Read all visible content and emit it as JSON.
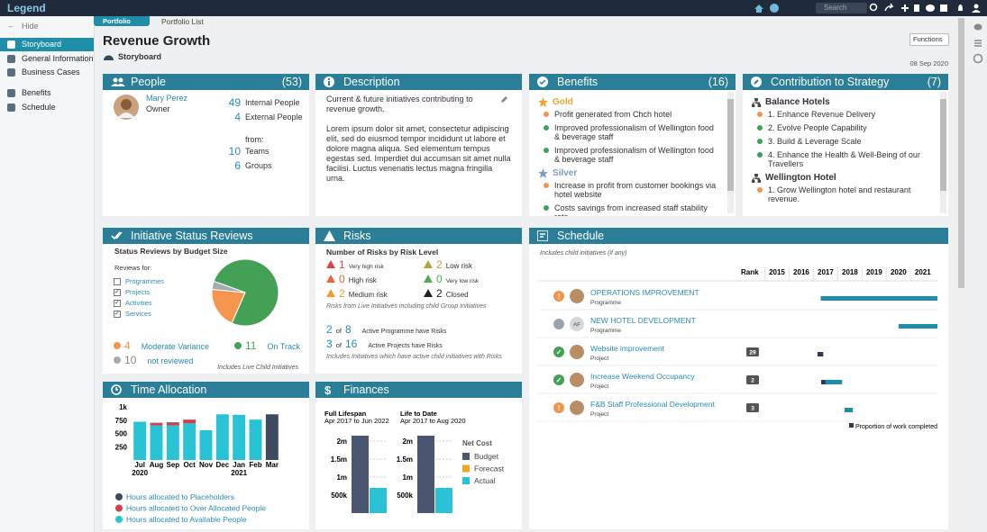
{
  "topbar": {
    "logo": "Legend",
    "search": "Search"
  },
  "sidebar": {
    "hide": "Hide",
    "items": [
      "Storyboard",
      "General Information",
      "Business Cases",
      "Benefits",
      "Schedule"
    ],
    "selected": 0
  },
  "tabs": [
    "Portfolio",
    "Portfolio List"
  ],
  "header": {
    "title": "Revenue Growth",
    "subtitle": "Storyboard",
    "functions": "Functions",
    "date": "08 Sep 2020"
  },
  "people": {
    "title": "People",
    "count": "(53)",
    "owner": {
      "name": "Mary Perez",
      "role": "Owner"
    },
    "stats": [
      {
        "value": 49,
        "label": "Internal People"
      },
      {
        "value": 4,
        "label": "External People"
      }
    ],
    "from": "from:",
    "from_stats": [
      {
        "value": 10,
        "label": "Teams"
      },
      {
        "value": 6,
        "label": "Groups"
      }
    ]
  },
  "description": {
    "title": "Description",
    "lead": "Current & future initiatives contributing to revenue growth.",
    "body": "Lorem ipsum dolor sit amet, consectetur adipiscing elit, sed do eiusmod tempor incididunt ut labore et dolore magna aliqua. Sed elementum tempus egestas sed. Imperdiet dui accumsan sit amet nulla facilisi. Luctus venenatis lectus magna fringilla urna."
  },
  "benefits": {
    "title": "Benefits",
    "count": "(16)",
    "groups": [
      {
        "name": "Gold",
        "color": "#f0a52c",
        "items": [
          {
            "text": "Profit generated from Chch hotel",
            "color": "#f0954d"
          },
          {
            "text": "Improved professionalism of Wellington food & beverage staff",
            "color": "#3aa55a"
          },
          {
            "text": "Improved professionalism of Wellington food & beverage staff",
            "color": "#3aa55a"
          }
        ]
      },
      {
        "name": "Silver",
        "color": "#7f9cc4",
        "items": [
          {
            "text": "Increase in profit from customer bookings via hotel website",
            "color": "#f0954d"
          },
          {
            "text": "Costs savings from increased staff stability rate",
            "color": "#3aa55a"
          }
        ]
      }
    ]
  },
  "strategy": {
    "title": "Contribution to Strategy",
    "count": "(7)",
    "groups": [
      {
        "name": "Balance Hotels",
        "items": [
          {
            "text": "1. Enhance Revenue Delivery",
            "color": "#f0954d"
          },
          {
            "text": "2. Evolve People Capability",
            "color": "#3aa55a"
          },
          {
            "text": "3. Build & Leverage Scale",
            "color": "#3aa55a"
          },
          {
            "text": "4. Enhance the Health & Well-Being of our Travellers",
            "color": "#3aa55a"
          }
        ]
      },
      {
        "name": "Wellington Hotel",
        "items": [
          {
            "text": "1. Grow Wellington hotel and restaurant revenue.",
            "color": "#f0954d"
          }
        ]
      }
    ]
  },
  "status_reviews": {
    "title": "Initiative Status Reviews",
    "subtitle": "Status Reviews by Budget Size",
    "reviews_for": "Reviews for:",
    "filters": [
      {
        "label": "Programmes",
        "checked": false
      },
      {
        "label": "Projects",
        "checked": true
      },
      {
        "label": "Activities",
        "checked": true
      },
      {
        "label": "Services",
        "checked": true
      }
    ],
    "segments": [
      {
        "name": "On Track",
        "value": 11,
        "budget_share": 76,
        "color": "#43a055"
      },
      {
        "name": "Moderate Variance",
        "value": 4,
        "budget_share": 20,
        "color": "#f5964f"
      },
      {
        "name": "not reviewed",
        "value": 10,
        "budget_share": 4,
        "color": "#a3abb3"
      }
    ],
    "note": "Includes Live Child Initiatives"
  },
  "risks": {
    "title": "Risks",
    "subtitle": "Number of Risks by Risk Level",
    "levels": [
      {
        "count": 1,
        "label": "Very high risk",
        "color": "#d9434a"
      },
      {
        "count": 2,
        "label": "Low risk",
        "color": "#b3a443"
      },
      {
        "count": 0,
        "label": "High risk",
        "color": "#e8663d"
      },
      {
        "count": 0,
        "label": "Very low risk",
        "color": "#4caf50"
      },
      {
        "count": 2,
        "label": "Medium risk",
        "color": "#f39c3c"
      },
      {
        "count": 2,
        "label": "Closed",
        "color": "#222222"
      }
    ],
    "levels_note": "Risks from Live Initiatives including child Group Initiatives",
    "active": [
      {
        "count": 2,
        "of": "of",
        "total": 8,
        "label": "Active Programme have Risks"
      },
      {
        "count": 3,
        "of": "of",
        "total": 16,
        "label": "Active Projects have Risks"
      }
    ],
    "active_note": "Includes Initiatives which have active child initiatives with Risks"
  },
  "schedule": {
    "title": "Schedule",
    "note": "Includes child initiatives (if any)",
    "rank_label": "Rank",
    "xlim": [
      2015,
      2022.1
    ],
    "xticks": [
      2015,
      2016,
      2017,
      2018,
      2019,
      2020,
      2021
    ],
    "bar_color": "#1f8ea8",
    "progress_color": "#2f3b4c",
    "legend": "Proportion of work completed",
    "rows": [
      {
        "name": "OPERATIONS IMPROVEMENT",
        "type": "Programme",
        "icon": "!",
        "status_color": "#f0954d",
        "rank": null,
        "start": 2017.3,
        "end": 2023,
        "progress": 0
      },
      {
        "name": "NEW HOTEL DEVELOPMENT",
        "type": "Programme",
        "icon": null,
        "status_color": "#9aa3ab",
        "avatar_initials": "AF",
        "rank": null,
        "start": 2020.5,
        "end": 2023,
        "progress": 0
      },
      {
        "name": "Website improvement",
        "type": "Project",
        "icon": "✓",
        "status_color": "#43a055",
        "rank": 29,
        "start": 2017.17,
        "end": 2017.4,
        "progress": 1
      },
      {
        "name": "Increase Weekend Occupancy",
        "type": "Project",
        "icon": "✓",
        "status_color": "#43a055",
        "rank": 2,
        "start": 2017.32,
        "end": 2018.18,
        "progress": 0.2
      },
      {
        "name": "F&B Staff Professional Development",
        "type": "Project",
        "icon": "!",
        "status_color": "#f0954d",
        "rank": 3,
        "start": 2018.28,
        "end": 2018.62,
        "progress": 0
      }
    ]
  },
  "time_allocation": {
    "title": "Time Allocation",
    "categories": [
      "Jul",
      "Aug",
      "Sep",
      "Oct",
      "Nov",
      "Dec",
      "Jan",
      "Feb",
      "Mar"
    ],
    "years": [
      "2020",
      null,
      null,
      null,
      null,
      null,
      "2021",
      null,
      null
    ],
    "ylim": [
      0,
      1000
    ],
    "yticks": [
      250,
      500,
      750,
      {
        "value": 1000,
        "label": "1k"
      }
    ],
    "series": [
      {
        "name": "Hours allocated to Placeholders",
        "color": "#3d4a5f",
        "values": [
          0,
          10,
          10,
          0,
          0,
          0,
          0,
          0,
          860
        ]
      },
      {
        "name": "Hours allocated to Over Allocated People",
        "color": "#d2404d",
        "values": [
          0,
          40,
          50,
          70,
          0,
          0,
          0,
          0,
          0
        ]
      },
      {
        "name": "Hours allocated to Available People",
        "color": "#29c3d6",
        "values": [
          720,
          650,
          650,
          690,
          560,
          860,
          850,
          760,
          0
        ]
      }
    ]
  },
  "finances": {
    "title": "Finances",
    "groups": [
      {
        "title": "Full Lifespan",
        "range": "Apr 2017 to Jun 2022"
      },
      {
        "title": "Life to Date",
        "range": "Apr 2017 to Aug 2020"
      }
    ],
    "ylim": [
      0,
      2250000
    ],
    "yticks": [
      {
        "value": 500000,
        "label": "500k"
      },
      {
        "value": 1000000,
        "label": "1m"
      },
      {
        "value": 1500000,
        "label": "1.5m"
      },
      {
        "value": 2000000,
        "label": "2m"
      }
    ],
    "legend_title": "Net Cost",
    "series": [
      {
        "name": "Budget",
        "color": "#4b5670",
        "values": [
          2150000,
          2150000
        ]
      },
      {
        "name": "Forecast",
        "color": "#f2a51e",
        "values": [
          null,
          null
        ]
      },
      {
        "name": "Actual",
        "color": "#2bc1d6",
        "values": [
          700000,
          700000
        ]
      }
    ]
  }
}
